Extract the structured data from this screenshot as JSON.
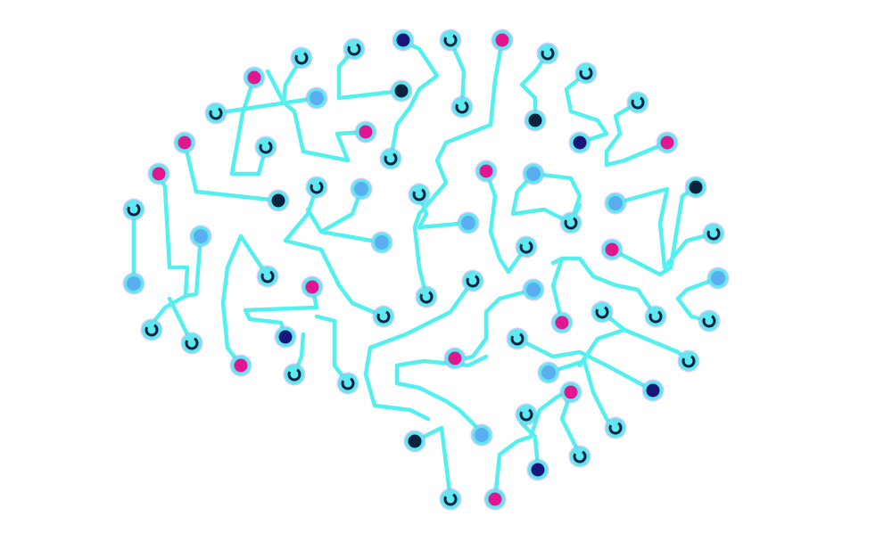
{
  "illustration": {
    "subject": "brain-shaped-circuit-network-icon",
    "background": "#ffffff",
    "colors": {
      "trace": "#54f0f0",
      "node_ring": "#5fe8f0",
      "node_ring_halo": "#a9a6f2",
      "node_magenta": "#e1178f",
      "node_navy": "#17177a",
      "node_midnight": "#0b2340",
      "node_light_blue": "#5aaef0",
      "terminal_ring": "#0b2340"
    },
    "node_types": [
      "magenta",
      "navy",
      "midnight",
      "light-blue",
      "open-terminal"
    ]
  }
}
